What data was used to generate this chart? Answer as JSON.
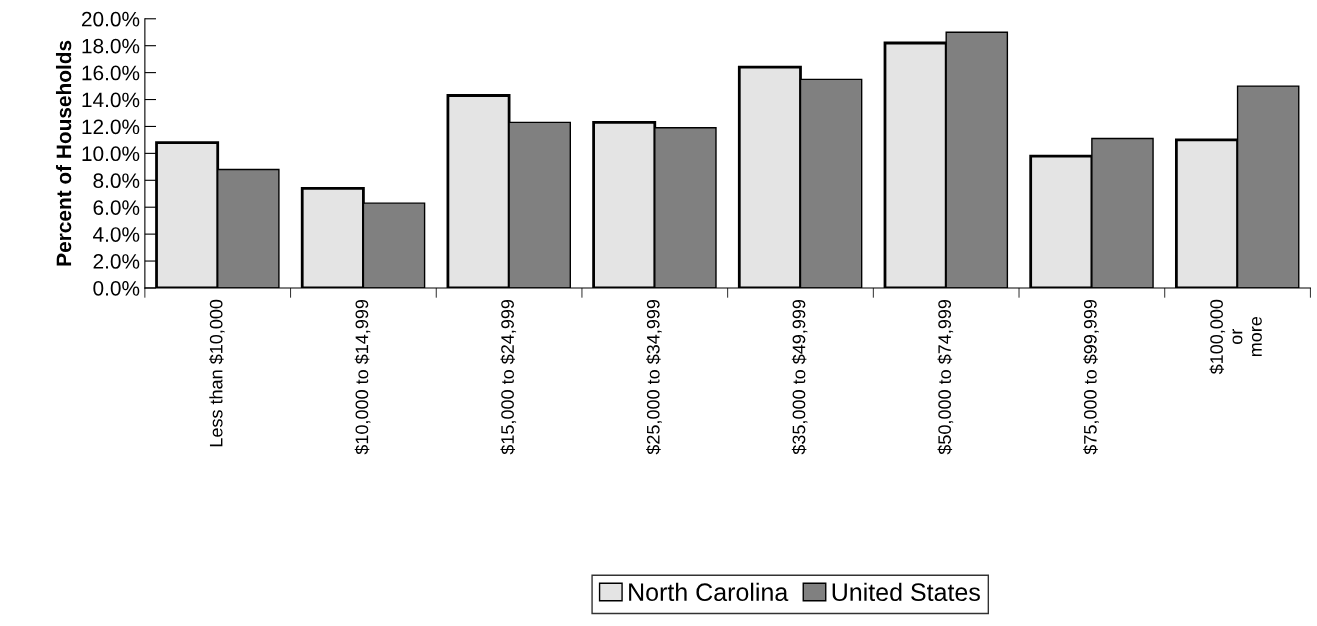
{
  "chart_data": {
    "type": "bar",
    "ylabel": "Percent of Households",
    "categories": [
      "Less than $10,000",
      "$10,000 to $14,999",
      "$15,000 to $24,999",
      "$25,000 to $34,999",
      "$35,000 to $49,999",
      "$50,000 to $74,999",
      "$75,000 to $99,999",
      "$100,000\nor\nmore"
    ],
    "series": [
      {
        "name": "North Carolina",
        "color": "#e4e4e4",
        "values": [
          10.8,
          7.4,
          14.3,
          12.3,
          16.4,
          18.2,
          9.8,
          11.0
        ]
      },
      {
        "name": "United States",
        "color": "#808080",
        "values": [
          8.8,
          6.3,
          12.3,
          11.9,
          15.5,
          19.0,
          11.1,
          15.0
        ]
      }
    ],
    "ylim": [
      0,
      20
    ],
    "yticks": [
      {
        "value": 0,
        "label": "0.0%"
      },
      {
        "value": 2,
        "label": "2.0%"
      },
      {
        "value": 4,
        "label": "4.0%"
      },
      {
        "value": 6,
        "label": "6.0%"
      },
      {
        "value": 8,
        "label": "8.0%"
      },
      {
        "value": 10,
        "label": "10.0%"
      },
      {
        "value": 12,
        "label": "12.0%"
      },
      {
        "value": 14,
        "label": "14.0%"
      },
      {
        "value": 16,
        "label": "16.0%"
      },
      {
        "value": 18,
        "label": "18.0%"
      },
      {
        "value": 20,
        "label": "20.0%"
      }
    ],
    "grid": false,
    "legend": "bottom"
  }
}
